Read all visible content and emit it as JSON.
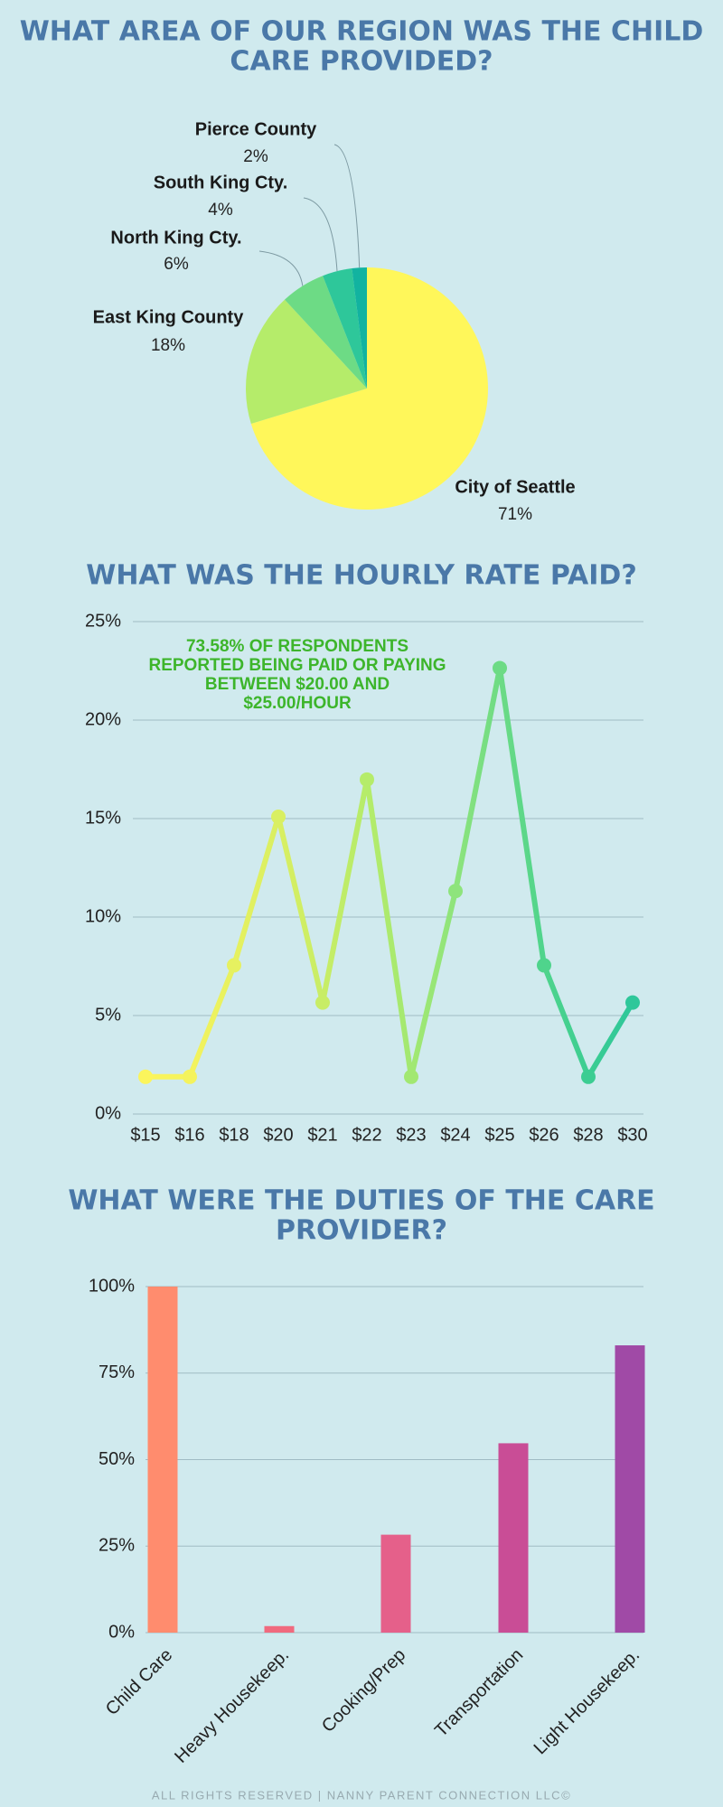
{
  "chart_data": [
    {
      "type": "pie",
      "title": [
        "WHAT AREA OF OUR REGION WAS THE CHILD",
        "CARE PROVIDED?"
      ],
      "categories": [
        "City of Seattle",
        "East King County",
        "North King Cty.",
        "South King Cty.",
        "Pierce County"
      ],
      "values": [
        71,
        18,
        6,
        4,
        2
      ],
      "value_labels": [
        "71%",
        "18%",
        "6%",
        "4%",
        "2%"
      ],
      "colors": [
        "#fff75a",
        "#b5ec6a",
        "#6ddb85",
        "#2ec79a",
        "#12b3a0"
      ]
    },
    {
      "type": "line",
      "title": [
        "WHAT WAS THE HOURLY RATE PAID?"
      ],
      "categories": [
        "$15",
        "$16",
        "$18",
        "$20",
        "$21",
        "$22",
        "$23",
        "$24",
        "$25",
        "$26",
        "$28",
        "$30"
      ],
      "values": [
        1.89,
        1.89,
        7.55,
        15.09,
        5.66,
        16.98,
        1.89,
        11.32,
        22.64,
        7.55,
        1.89,
        5.66
      ],
      "colors": [
        "#fbf55c",
        "#f4f35d",
        "#e6f160",
        "#d9ef62",
        "#c8ed66",
        "#b5ec6a",
        "#a2e871",
        "#8ee47c",
        "#6ddb85",
        "#4fd48c",
        "#3ccd92",
        "#2ec79a"
      ],
      "annotation": [
        "73.58% OF RESPONDENTS",
        "REPORTED BEING PAID OR PAYING",
        "BETWEEN $20.00 AND",
        "$25.00/HOUR"
      ],
      "ylim": [
        0,
        25
      ],
      "yticks": [
        {
          "value": 0,
          "label": "0%"
        },
        {
          "value": 5,
          "label": "5%"
        },
        {
          "value": 10,
          "label": "10%"
        },
        {
          "value": 15,
          "label": "15%"
        },
        {
          "value": 20,
          "label": "20%"
        },
        {
          "value": 25,
          "label": "25%"
        }
      ],
      "grid": true
    },
    {
      "type": "bar",
      "title": [
        "WHAT WERE THE DUTIES OF THE CARE",
        "PROVIDER?"
      ],
      "categories": [
        "Child Care",
        "Heavy Housekeep.",
        "Cooking/Prep",
        "Transportation",
        "Light Housekeep."
      ],
      "values": [
        100,
        1.89,
        28.3,
        54.72,
        83.02
      ],
      "colors": [
        "#ff8c6e",
        "#f06a7e",
        "#e5608a",
        "#c94d96",
        "#a04aa6"
      ],
      "ylim": [
        0,
        100
      ],
      "yticks": [
        {
          "value": 0,
          "label": "0%"
        },
        {
          "value": 25,
          "label": "25%"
        },
        {
          "value": 50,
          "label": "50%"
        },
        {
          "value": 75,
          "label": "75%"
        },
        {
          "value": 100,
          "label": "100%"
        }
      ],
      "grid": true
    }
  ],
  "footer": "ALL RIGHTS RESERVED | NANNY PARENT CONNECTION LLC©"
}
